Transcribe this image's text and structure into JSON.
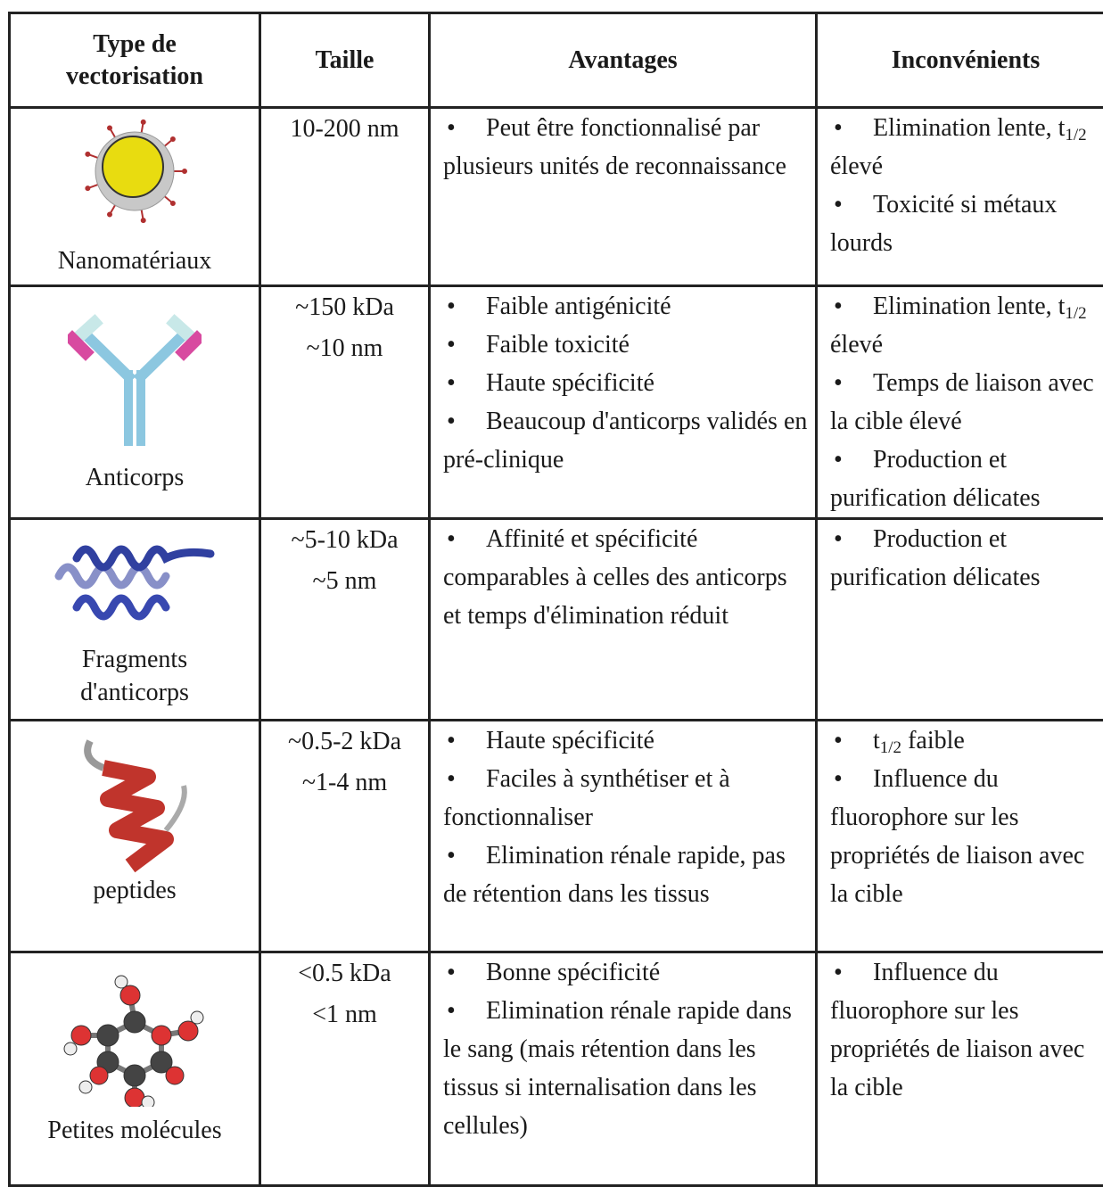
{
  "table": {
    "header": [
      "Type de vectorisation",
      "Taille",
      "Avantages",
      "Inconvénients"
    ],
    "rows": [
      {
        "type": "Nanomatériaux",
        "size": [
          "10-200 nm"
        ],
        "pros": [
          [
            "Peut être fonctionnalisé par plusieurs unités de reconnaissance"
          ]
        ],
        "cons": [
          [
            "Elimination lente, t",
            {
              "sub": "1/2"
            },
            " élevé"
          ],
          [
            "Toxicité  si métaux lourds"
          ]
        ]
      },
      {
        "type": "Anticorps",
        "size": [
          "~150 kDa",
          "~10 nm"
        ],
        "pros": [
          [
            "Faible antigénicité"
          ],
          [
            "Faible toxicité"
          ],
          [
            "Haute spécificité"
          ],
          [
            "Beaucoup d'anticorps validés en pré-clinique"
          ]
        ],
        "cons": [
          [
            "Elimination lente, t",
            {
              "sub": "1/2"
            },
            " élevé"
          ],
          [
            "Temps de liaison avec la cible élevé"
          ],
          [
            "Production et purification délicates"
          ]
        ]
      },
      {
        "type": "Fragments d'anticorps",
        "size": [
          "~5-10 kDa",
          "~5 nm"
        ],
        "pros": [
          [
            "Affinité et spécificité comparables à celles des anticorps et temps d'élimination réduit"
          ]
        ],
        "cons": [
          [
            "Production et purification délicates"
          ]
        ]
      },
      {
        "type": "peptides",
        "size": [
          "~0.5-2 kDa",
          "~1-4 nm"
        ],
        "pros": [
          [
            "Haute spécificité"
          ],
          [
            "Faciles à synthétiser et à fonctionnaliser"
          ],
          [
            "Elimination rénale rapide, pas de rétention dans les tissus"
          ]
        ],
        "cons": [
          [
            "t",
            {
              "sub": "1/2"
            },
            " faible"
          ],
          [
            "Influence du fluorophore sur les propriétés de liaison avec la cible"
          ]
        ]
      },
      {
        "type": "Petites molécules",
        "size": [
          "<0.5 kDa",
          "<1 nm"
        ],
        "pros": [
          [
            "Bonne spécificité"
          ],
          [
            "Elimination rénale rapide dans le sang (mais rétention dans les tissus si internalisation dans les cellules)"
          ]
        ],
        "cons": [
          [
            "Influence du fluorophore sur les propriétés de liaison avec la cible"
          ]
        ]
      }
    ]
  }
}
